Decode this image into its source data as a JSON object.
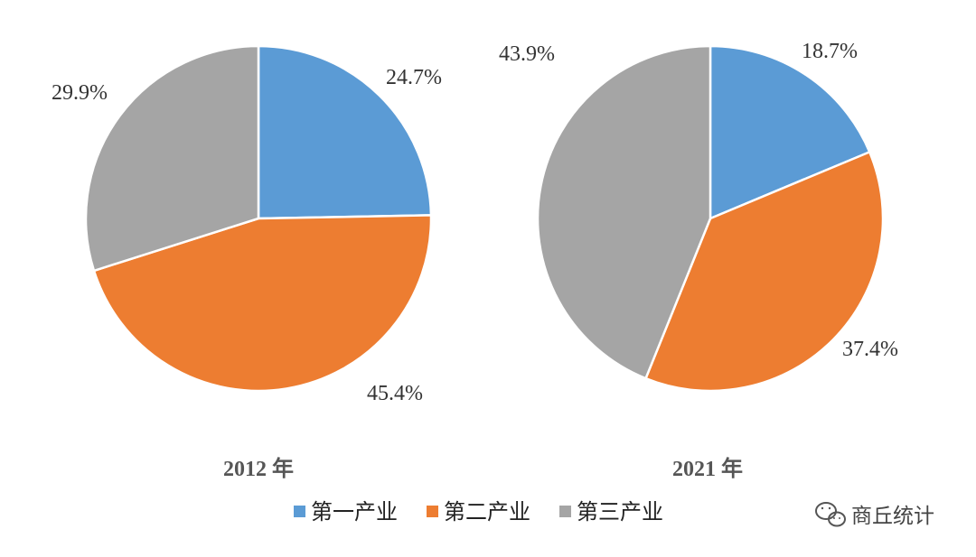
{
  "chart_data": [
    {
      "type": "pie",
      "title": "2012 年",
      "slices": [
        {
          "name": "第一产业",
          "value": 24.7,
          "label": "24.7%",
          "color": "#5B9BD5"
        },
        {
          "name": "第二产业",
          "value": 45.4,
          "label": "45.4%",
          "color": "#ED7D31"
        },
        {
          "name": "第三产业",
          "value": 29.9,
          "label": "29.9%",
          "color": "#A5A5A5"
        }
      ]
    },
    {
      "type": "pie",
      "title": "2021 年",
      "slices": [
        {
          "name": "第一产业",
          "value": 18.7,
          "label": "18.7%",
          "color": "#5B9BD5"
        },
        {
          "name": "第二产业",
          "value": 37.4,
          "label": "37.4%",
          "color": "#ED7D31"
        },
        {
          "name": "第三产业",
          "value": 43.9,
          "label": "43.9%",
          "color": "#A5A5A5"
        }
      ]
    }
  ],
  "legend": {
    "placement": "bottom",
    "items": [
      {
        "label": "第一产业",
        "color": "#5B9BD5"
      },
      {
        "label": "第二产业",
        "color": "#ED7D31"
      },
      {
        "label": "第三产业",
        "color": "#A5A5A5"
      }
    ]
  },
  "watermark": {
    "icon": "wechat-icon",
    "text": "商丘统计"
  }
}
